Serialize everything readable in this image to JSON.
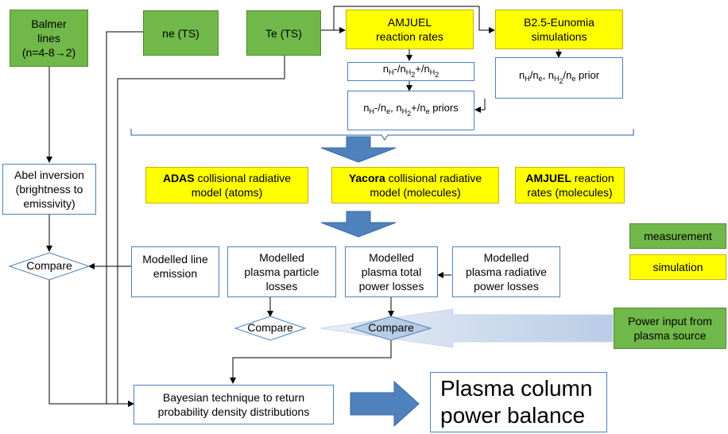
{
  "measurements": {
    "balmer": [
      "Balmer",
      "lines",
      "(n=4-8→2)"
    ],
    "ne_ts": "ne (TS)",
    "te_ts": "Te (TS)",
    "power_input": [
      "Power input from",
      "plasma source"
    ]
  },
  "simulations": {
    "amjuel_rates": [
      "AMJUEL",
      "reaction rates"
    ],
    "b25": [
      "B2.5-Eunomia",
      "simulations"
    ]
  },
  "ratio_box": {
    "n": "n",
    "h_minus": "H",
    "dash": "-/",
    "h2": "H",
    "two": "2",
    "plus": "+/",
    "slash": "/"
  },
  "priors": {
    "ratio_priors_suffix": " priors",
    "b25_prior_suffix": " prior",
    "e": "e"
  },
  "models": {
    "adas_bold": "ADAS",
    "adas_rest1": " collisional radiative",
    "adas_rest2": "model (atoms)",
    "yacora_bold": "Yacora",
    "yacora_rest1": " collisional radiative",
    "yacora_rest2": "model (molecules)",
    "amjuel_bold": "AMJUEL",
    "amjuel_rest1": " reaction",
    "amjuel_rest2": "rates (molecules)"
  },
  "abel": [
    "Abel inversion",
    "(brightness to",
    "emissivity)"
  ],
  "compare_label": "Compare",
  "modelled": {
    "line_emission": [
      "Modelled line",
      "emission"
    ],
    "particle_losses": [
      "Modelled",
      "plasma particle",
      "losses"
    ],
    "total_power": [
      "Modelled",
      "plasma total",
      "power losses"
    ],
    "radiative_power": [
      "Modelled",
      "plasma radiative",
      "power losses"
    ]
  },
  "bayesian": [
    "Bayesian technique to return",
    "probability density distributions"
  ],
  "result": [
    "Plasma column",
    "power balance"
  ],
  "legend": {
    "measurement": "measurement",
    "simulation": "simulation"
  },
  "colors": {
    "measurement_green": "#70b84a",
    "simulation_yellow": "#ffff00",
    "arrow_blue": "#4f81bd",
    "light_arrow": "#c6d5ea"
  }
}
